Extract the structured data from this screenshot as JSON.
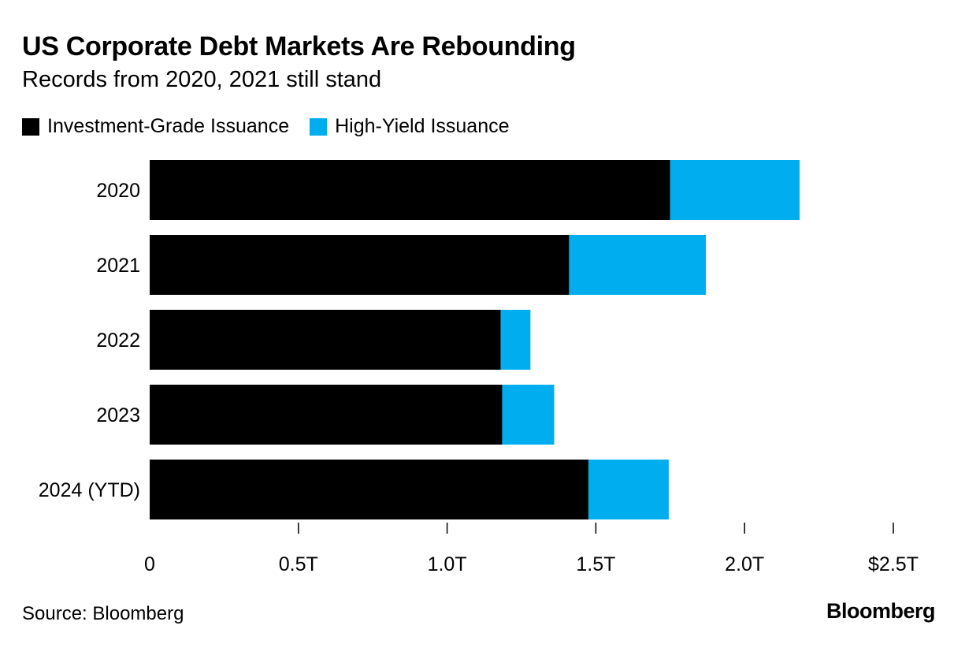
{
  "chart_data": {
    "type": "bar",
    "orientation": "horizontal",
    "stacked": true,
    "title": "US Corporate Debt Markets Are Rebounding",
    "subtitle": "Records from 2020, 2021 still stand",
    "categories": [
      "2020",
      "2021",
      "2022",
      "2023",
      "2024 (YTD)"
    ],
    "series": [
      {
        "name": "Investment-Grade Issuance",
        "color": "#000000",
        "values": [
          1.75,
          1.41,
          1.18,
          1.185,
          1.475
        ]
      },
      {
        "name": "High-Yield Issuance",
        "color": "#00adef",
        "values": [
          0.435,
          0.46,
          0.1,
          0.175,
          0.27
        ]
      }
    ],
    "xlim": [
      0,
      2.5
    ],
    "ticks": [
      {
        "value": 0,
        "label": "0"
      },
      {
        "value": 0.5,
        "label": "0.5T"
      },
      {
        "value": 1.0,
        "label": "1.0T"
      },
      {
        "value": 1.5,
        "label": "1.5T"
      },
      {
        "value": 2.0,
        "label": "2.0T"
      },
      {
        "value": 2.5,
        "label": "$2.5T"
      }
    ],
    "xlabel": "",
    "ylabel": "",
    "grid": false,
    "legend_position": "top-left"
  },
  "footer": {
    "source": "Source: Bloomberg",
    "brand": "Bloomberg"
  }
}
